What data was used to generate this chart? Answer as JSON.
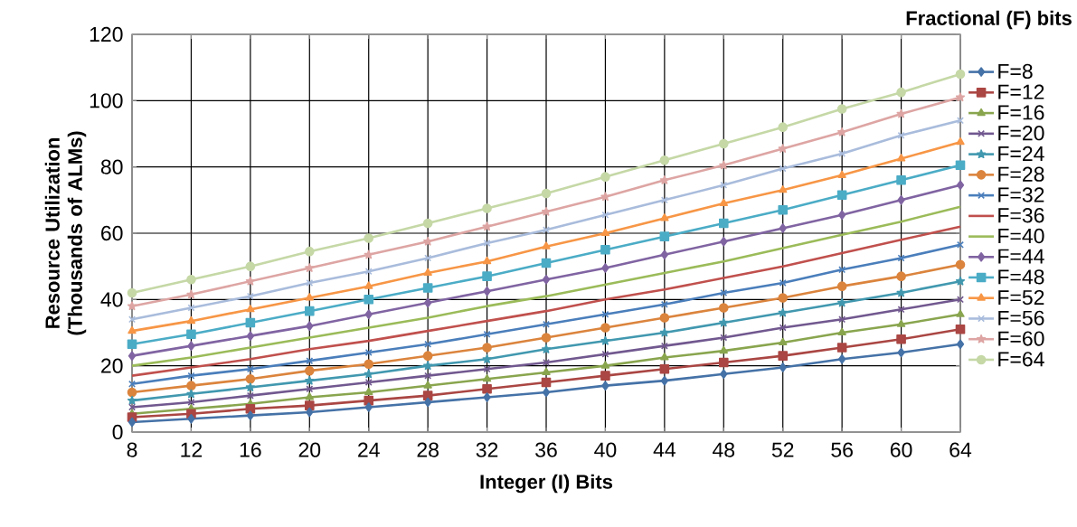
{
  "chart_data": {
    "type": "line",
    "xlabel": "Integer (I) Bits",
    "ylabel": "Resource Utilization (Thousands of ALMs)",
    "legend_title": "Fractional (F) bits",
    "x": [
      8,
      12,
      16,
      20,
      24,
      28,
      32,
      36,
      40,
      44,
      48,
      52,
      56,
      60,
      64
    ],
    "xlim": [
      8,
      64
    ],
    "xticks": [
      8,
      12,
      16,
      20,
      24,
      28,
      32,
      36,
      40,
      44,
      48,
      52,
      56,
      60,
      64
    ],
    "ylim": [
      0,
      120
    ],
    "yticks": [
      0,
      20,
      40,
      60,
      80,
      100,
      120
    ],
    "grid": true,
    "legend": "right",
    "series": [
      {
        "name": "F=8",
        "color": "#4572a7",
        "marker": "diamond",
        "values": [
          3,
          4,
          5,
          6,
          7.5,
          9,
          10.5,
          12,
          14,
          15.5,
          17.5,
          19.5,
          22,
          24,
          26.5
        ]
      },
      {
        "name": "F=12",
        "color": "#aa4643",
        "marker": "square",
        "values": [
          4.5,
          5.5,
          7,
          8,
          9.5,
          11,
          13,
          15,
          17,
          19,
          21,
          23,
          25.5,
          28,
          31
        ]
      },
      {
        "name": "F=16",
        "color": "#89a54e",
        "marker": "triangle",
        "values": [
          5.5,
          7,
          8.5,
          10.5,
          12,
          14,
          16,
          18,
          20,
          22.5,
          24.5,
          27,
          30,
          32.5,
          35.5
        ]
      },
      {
        "name": "F=20",
        "color": "#71588f",
        "marker": "cross",
        "values": [
          7.5,
          9,
          11,
          13,
          15,
          17,
          19,
          21,
          23.5,
          26,
          28.5,
          31.5,
          34,
          37,
          40
        ]
      },
      {
        "name": "F=24",
        "color": "#4198af",
        "marker": "star",
        "values": [
          9.5,
          11.5,
          13.5,
          15.5,
          17.5,
          20,
          22,
          25,
          27.5,
          30,
          33,
          36,
          39,
          42,
          45.5
        ]
      },
      {
        "name": "F=28",
        "color": "#db843d",
        "marker": "circle",
        "values": [
          12,
          14,
          16,
          18.5,
          20.5,
          23,
          25.5,
          28.5,
          31.5,
          34.5,
          37.5,
          40.5,
          44,
          47,
          50.5
        ]
      },
      {
        "name": "F=32",
        "color": "#4a7ebb",
        "marker": "cross",
        "values": [
          14.5,
          17,
          19,
          21.5,
          24,
          26.5,
          29.5,
          32.5,
          35.5,
          38.5,
          42,
          45,
          49,
          52.5,
          56.5
        ]
      },
      {
        "name": "F=36",
        "color": "#c0504d",
        "marker": "none",
        "values": [
          17,
          19.5,
          22,
          25,
          27.5,
          30.5,
          33.5,
          36.5,
          40,
          43,
          46.5,
          50,
          54,
          58,
          62
        ]
      },
      {
        "name": "F=40",
        "color": "#9bbb59",
        "marker": "none",
        "values": [
          20,
          22.5,
          25.5,
          28.5,
          31.5,
          34.5,
          38,
          41,
          44.5,
          48,
          51.5,
          55.5,
          59.5,
          63.5,
          68
        ]
      },
      {
        "name": "F=44",
        "color": "#8064a2",
        "marker": "diamond",
        "values": [
          23,
          26,
          29,
          32,
          35.5,
          39,
          42.5,
          46,
          49.5,
          53.5,
          57.5,
          61.5,
          65.5,
          70,
          74.5
        ]
      },
      {
        "name": "F=48",
        "color": "#4bacc6",
        "marker": "square",
        "values": [
          26.5,
          29.5,
          33,
          36.5,
          40,
          43.5,
          47,
          51,
          55,
          59,
          63,
          67,
          71.5,
          76,
          80.5
        ]
      },
      {
        "name": "F=52",
        "color": "#f79646",
        "marker": "triangle",
        "values": [
          30.5,
          33.5,
          37,
          40.5,
          44,
          48,
          51.5,
          56,
          60,
          64.5,
          69,
          73,
          77.5,
          82.5,
          87.5
        ]
      },
      {
        "name": "F=56",
        "color": "#a9bcdc",
        "marker": "cross",
        "values": [
          34,
          37.5,
          41,
          45,
          48.5,
          52.5,
          57,
          61,
          65.5,
          70,
          74.5,
          79.5,
          84,
          89.5,
          94
        ]
      },
      {
        "name": "F=60",
        "color": "#dda5a3",
        "marker": "star",
        "values": [
          38,
          41.5,
          45.5,
          49.5,
          53.5,
          57.5,
          62,
          66.5,
          71,
          76,
          80.5,
          85.5,
          90.5,
          96,
          101
        ]
      },
      {
        "name": "F=64",
        "color": "#c5d8a6",
        "marker": "circle",
        "values": [
          42,
          46,
          50,
          54.5,
          58.5,
          63,
          67.5,
          72,
          77,
          82,
          87,
          92,
          97.5,
          102.5,
          108
        ]
      }
    ]
  }
}
